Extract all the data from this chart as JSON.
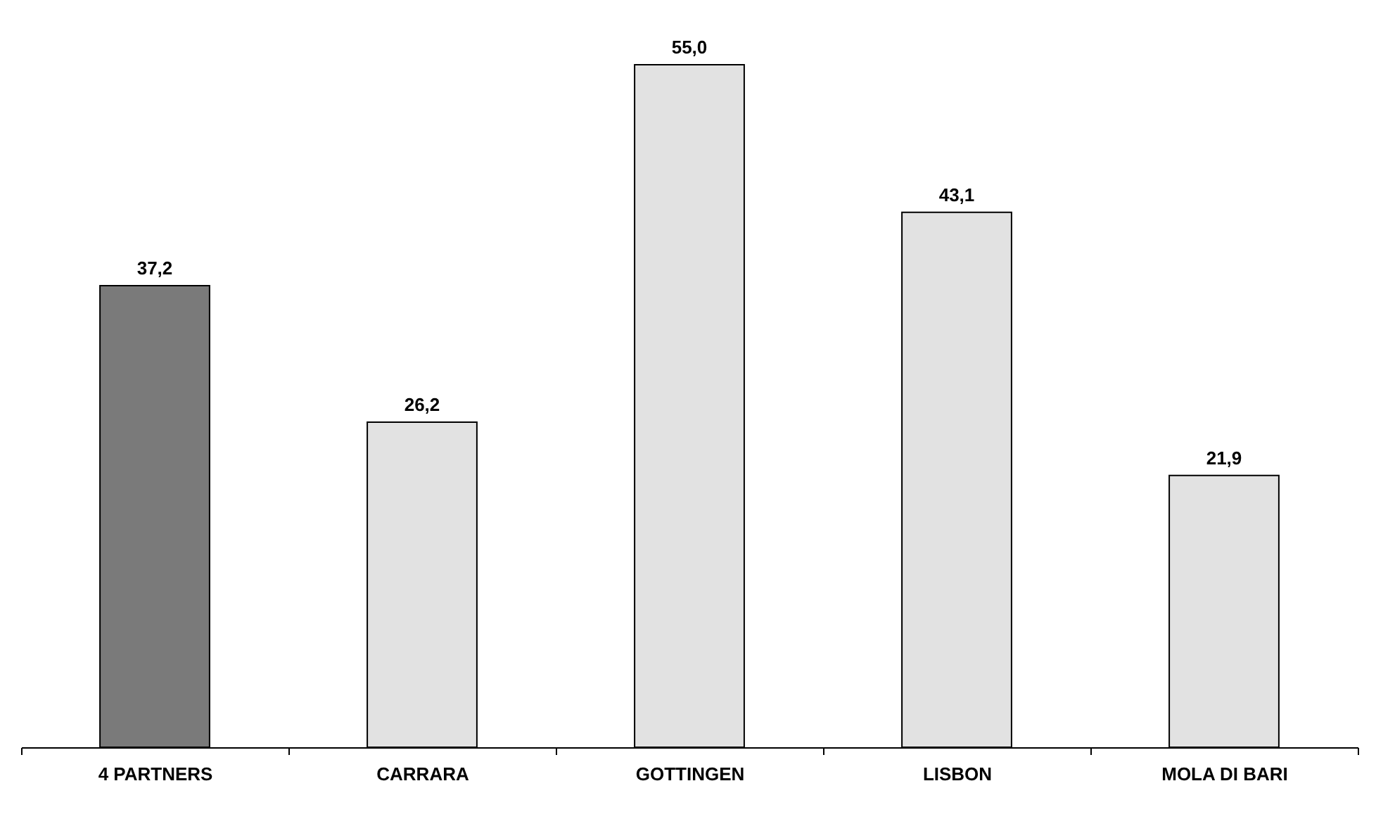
{
  "chart_data": {
    "type": "bar",
    "categories": [
      "4 PARTNERS",
      "CARRARA",
      "GOTTINGEN",
      "LISBON",
      "MOLA DI BARI"
    ],
    "values": [
      37.2,
      26.2,
      55.0,
      43.1,
      21.9
    ],
    "colors": [
      "#7a7a7a",
      "#e2e2e2",
      "#e2e2e2",
      "#e2e2e2",
      "#e2e2e2"
    ],
    "value_labels": [
      "37,2",
      "26,2",
      "55,0",
      "43,1",
      "21,9"
    ],
    "grid": false
  }
}
